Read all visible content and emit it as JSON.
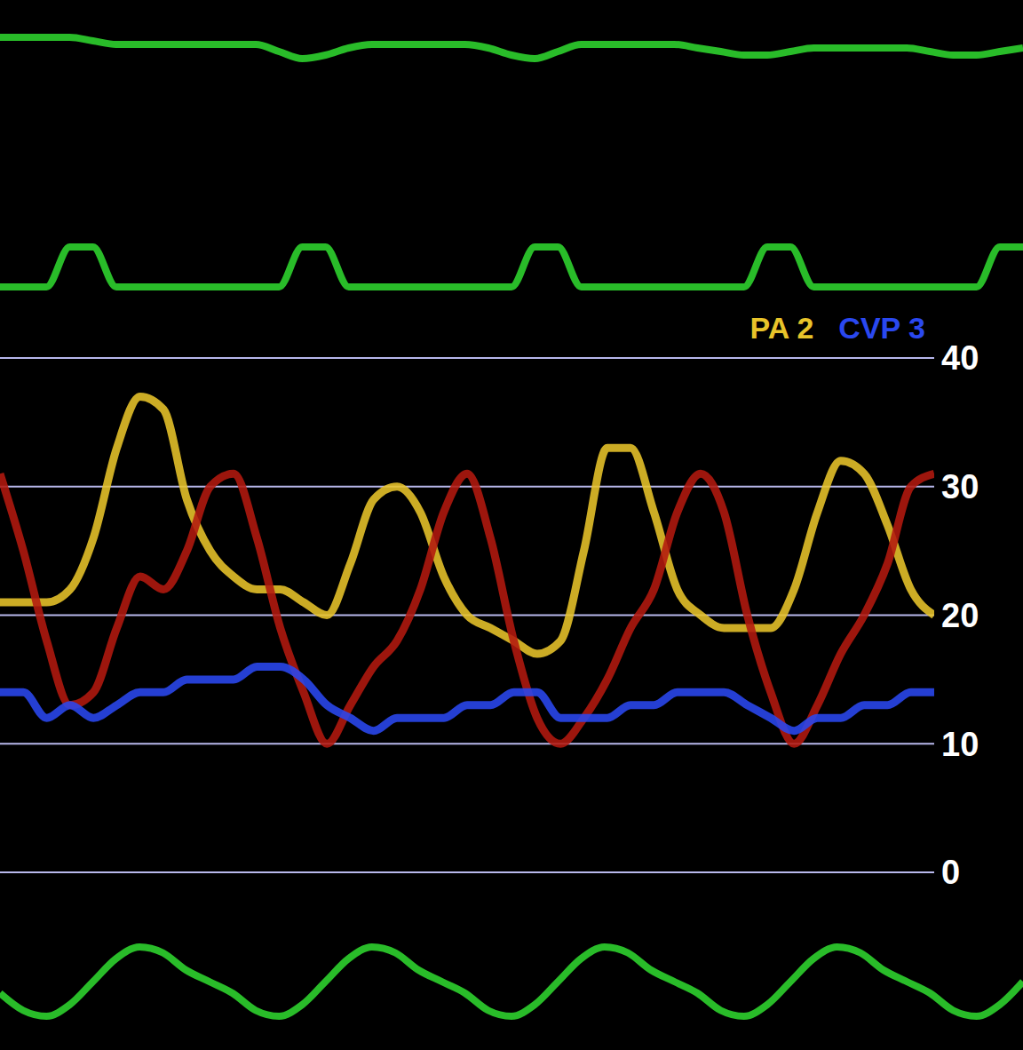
{
  "chart_data": [
    {
      "type": "line",
      "tick_labels": false,
      "x": [
        0,
        1,
        2,
        3,
        4,
        5,
        6,
        7,
        8,
        9,
        10,
        11,
        12,
        13,
        14,
        15,
        16,
        17,
        18,
        19,
        20,
        21,
        22,
        23,
        24,
        25,
        26,
        27,
        28,
        29,
        30,
        31,
        32,
        33,
        34,
        35,
        36,
        37,
        38,
        39,
        40,
        41,
        42,
        43,
        44
      ],
      "xlim": [
        0,
        44
      ],
      "ylim": [
        0,
        10
      ],
      "series": [
        {
          "color": "#2fd62f",
          "values": [
            6,
            6,
            6,
            6,
            5.5,
            5,
            5,
            5,
            5,
            5,
            5,
            5,
            4,
            3,
            3.5,
            4.5,
            5,
            5,
            5,
            5,
            5,
            4.5,
            3.5,
            3,
            4,
            5,
            5,
            5,
            5,
            5,
            4.5,
            4,
            3.5,
            3.5,
            4,
            4.5,
            4.5,
            4.5,
            4.5,
            4.5,
            4,
            3.5,
            3.5,
            4,
            4.5
          ]
        }
      ]
    },
    {
      "type": "line",
      "tick_labels": false,
      "x": [
        0,
        1,
        2,
        3,
        4,
        5,
        6,
        7,
        8,
        9,
        10,
        11,
        12,
        13,
        14,
        15,
        16,
        17,
        18,
        19,
        20,
        21,
        22,
        23,
        24,
        25,
        26,
        27,
        28,
        29,
        30,
        31,
        32,
        33,
        34,
        35,
        36,
        37,
        38,
        39,
        40,
        41,
        42,
        43,
        44
      ],
      "xlim": [
        0,
        44
      ],
      "ylim": [
        0,
        10
      ],
      "series": [
        {
          "color": "#2fd62f",
          "values": [
            3,
            3,
            3,
            8,
            8,
            3,
            3,
            3,
            3,
            3,
            3,
            3,
            3,
            8,
            8,
            3,
            3,
            3,
            3,
            3,
            3,
            3,
            3,
            8,
            8,
            3,
            3,
            3,
            3,
            3,
            3,
            3,
            3,
            8,
            8,
            3,
            3,
            3,
            3,
            3,
            3,
            3,
            3,
            8,
            8
          ]
        }
      ]
    },
    {
      "type": "line",
      "tick_labels": "y",
      "grid": true,
      "legend": "upper right",
      "x": [
        0,
        1,
        2,
        3,
        4,
        5,
        6,
        7,
        8,
        9,
        10,
        11,
        12,
        13,
        14,
        15,
        16,
        17,
        18,
        19,
        20,
        21,
        22,
        23,
        24,
        25,
        26,
        27,
        28,
        29,
        30,
        31,
        32,
        33,
        34,
        35,
        36,
        37,
        38,
        39,
        40
      ],
      "xlim": [
        0,
        40
      ],
      "ylim": [
        0,
        40
      ],
      "yticks": [
        0,
        10,
        20,
        30,
        40
      ],
      "series": [
        {
          "name": "PA 2",
          "color": "#e8c42a",
          "values": [
            21,
            21,
            21,
            22,
            26,
            33,
            37,
            36,
            29,
            25,
            23,
            22,
            22,
            21,
            20,
            24,
            29,
            30,
            28,
            23,
            20,
            19,
            18,
            17,
            18,
            25,
            33,
            33,
            28,
            22,
            20,
            19,
            19,
            19,
            22,
            28,
            32,
            31,
            27,
            22,
            20
          ]
        },
        {
          "color": "#b3190f",
          "values": [
            31,
            25,
            18,
            13,
            14,
            19,
            23,
            22,
            25,
            30,
            31,
            26,
            19,
            14,
            10,
            13,
            16,
            18,
            22,
            28,
            31,
            26,
            18,
            12,
            10,
            12,
            15,
            19,
            22,
            28,
            31,
            28,
            20,
            14,
            10,
            13,
            17,
            20,
            24,
            30,
            31
          ]
        },
        {
          "name": "CVP 3",
          "color": "#2a48f0",
          "values": [
            14,
            14,
            12,
            13,
            12,
            13,
            14,
            14,
            15,
            15,
            15,
            16,
            16,
            15,
            13,
            12,
            11,
            12,
            12,
            12,
            13,
            13,
            14,
            14,
            12,
            12,
            12,
            13,
            13,
            14,
            14,
            14,
            13,
            12,
            11,
            12,
            12,
            13,
            13,
            14,
            14
          ]
        }
      ]
    },
    {
      "type": "line",
      "tick_labels": false,
      "x": [
        0,
        1,
        2,
        3,
        4,
        5,
        6,
        7,
        8,
        9,
        10,
        11,
        12,
        13,
        14,
        15,
        16,
        17,
        18,
        19,
        20,
        21,
        22,
        23,
        24,
        25,
        26,
        27,
        28,
        29,
        30,
        31,
        32,
        33,
        34,
        35,
        36,
        37,
        38,
        39,
        40,
        41,
        42,
        43,
        44
      ],
      "xlim": [
        0,
        44
      ],
      "ylim": [
        0,
        10
      ],
      "series": [
        {
          "color": "#2fd62f",
          "values": [
            4,
            2.5,
            2,
            3,
            5,
            7,
            8,
            7.5,
            6,
            5,
            4,
            2.5,
            2,
            3,
            5,
            7,
            8,
            7.5,
            6,
            5,
            4,
            2.5,
            2,
            3,
            5,
            7,
            8,
            7.5,
            6,
            5,
            4,
            2.5,
            2,
            3,
            5,
            7,
            8,
            7.5,
            6,
            5,
            4,
            2.5,
            2,
            3,
            5
          ]
        }
      ]
    }
  ]
}
